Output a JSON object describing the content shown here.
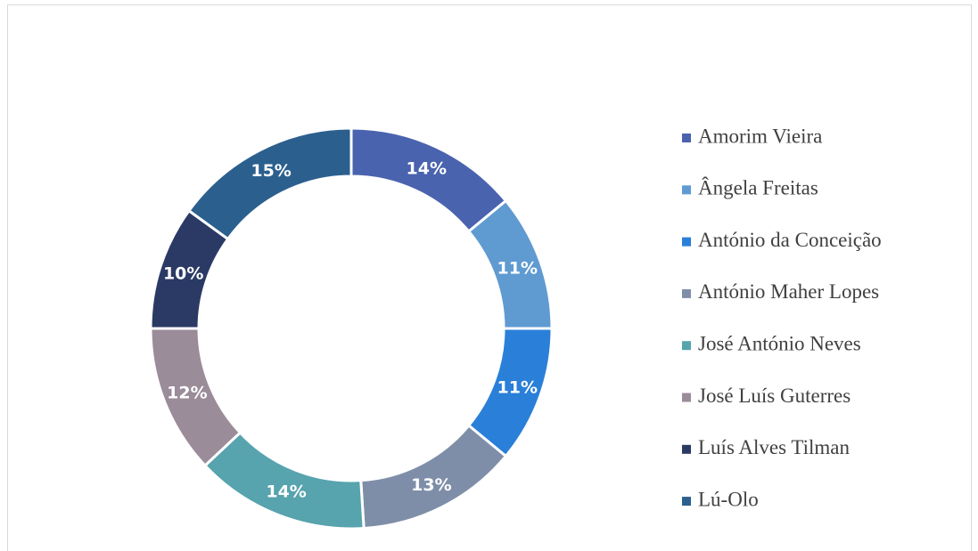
{
  "chart_data": {
    "type": "donut",
    "categories": [
      "Amorim Vieira",
      "Ângela Freitas",
      "António da Conceição",
      "António Maher Lopes",
      "José António Neves",
      "José Luís Guterres",
      "Luís Alves Tilman",
      "Lú-Olo"
    ],
    "values": [
      14,
      11,
      11,
      13,
      14,
      12,
      10,
      15
    ],
    "value_labels": [
      "14%",
      "11%",
      "11%",
      "13%",
      "14%",
      "12%",
      "10%",
      "15%"
    ],
    "colors": [
      "#4a63ae",
      "#5f9bd1",
      "#2a7fd8",
      "#7f8ea8",
      "#57a3ae",
      "#9b8c9a",
      "#2b3a65",
      "#2b5f8e"
    ],
    "legend": "right"
  }
}
